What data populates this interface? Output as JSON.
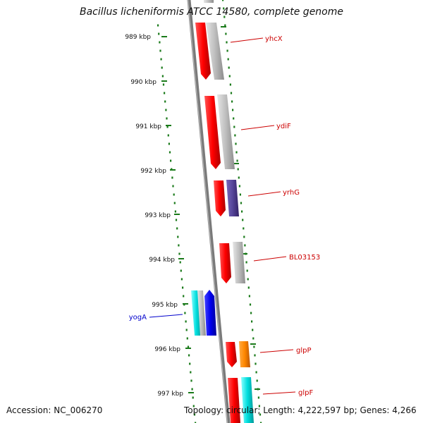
{
  "title": "Bacillus licheniformis ATCC 14580, complete genome",
  "accession": "Accession: NC_006270",
  "summary": "Topology: circular; Length: 4,222,597 bp; Genes: 4,266",
  "ticks": [
    "989 kbp",
    "990 kbp",
    "991 kbp",
    "992 kbp",
    "993 kbp",
    "994 kbp",
    "995 kbp",
    "996 kbp",
    "997 kbp"
  ],
  "genes": [
    {
      "label": "yhcX",
      "color": "#cc0000"
    },
    {
      "label": "ydiF",
      "color": "#cc0000"
    },
    {
      "label": "yrhG",
      "color": "#cc0000"
    },
    {
      "label": "BL03153",
      "color": "#cc0000"
    },
    {
      "label": "yogA",
      "color": "#0000cc"
    },
    {
      "label": "glpP",
      "color": "#cc0000"
    },
    {
      "label": "glpF",
      "color": "#cc0000"
    }
  ],
  "colors": {
    "backbone": "#7a7a7a",
    "tick": "#1a7a1a",
    "red": "#ff0000",
    "gray": "#bdbdbd",
    "purple": "#554499",
    "blue": "#0000ee",
    "cyan": "#00dddd",
    "orange": "#ff8800"
  }
}
